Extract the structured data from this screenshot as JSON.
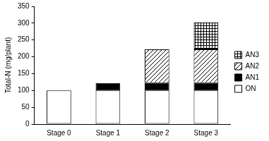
{
  "chart_data": {
    "type": "bar",
    "stacked": true,
    "y_label": "Total-N (mg/plant)",
    "categories": [
      "Stage 0",
      "Stage 1",
      "Stage 2",
      "Stage 3"
    ],
    "series": [
      {
        "name": "ON",
        "color": "#ffffff",
        "marker": "solid",
        "values": [
          100,
          100,
          100,
          100
        ]
      },
      {
        "name": "AN1",
        "color": "#000000",
        "marker": "solid",
        "values": [
          null,
          22,
          22,
          22
        ]
      },
      {
        "name": "AN2",
        "color": "#000000",
        "marker": "diagonal",
        "values": [
          null,
          null,
          100,
          100
        ]
      },
      {
        "name": "AN3",
        "color": "#000000",
        "marker": "crosshatch",
        "values": [
          null,
          null,
          null,
          80
        ]
      }
    ],
    "ylim": [
      0,
      350
    ],
    "yticks": [
      0,
      50,
      100,
      150,
      200,
      250,
      300,
      350
    ],
    "grid": false,
    "legend": "right"
  }
}
